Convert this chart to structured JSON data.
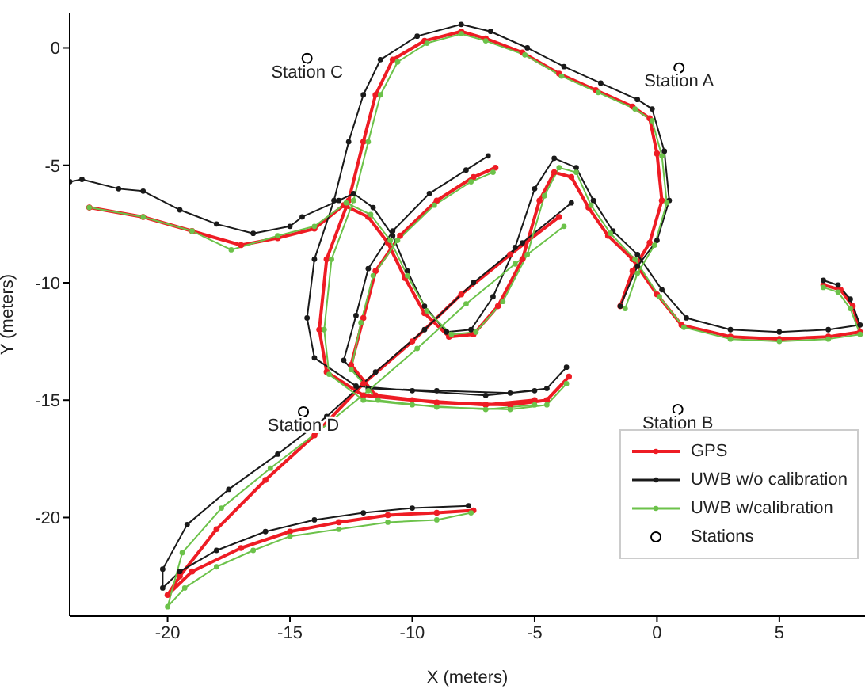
{
  "chart_data": {
    "type": "line",
    "xlabel": "X (meters)",
    "ylabel": "Y (meters)",
    "xlim": [
      -24,
      8.5
    ],
    "ylim": [
      -24.2,
      1.5
    ],
    "xticks": [
      -20,
      -15,
      -10,
      -5,
      0,
      5
    ],
    "yticks": [
      0,
      -5,
      -10,
      -15,
      -20
    ],
    "grid": false,
    "legend": "bottom right",
    "marker": "circle",
    "line_style": "solid",
    "series": [
      {
        "name": "GPS",
        "color": "#ee1c24",
        "x": [
          -23.2,
          -21,
          -19,
          -17,
          -15.5,
          -14,
          -12.8,
          -11.8,
          -11,
          -10.3,
          -9.5,
          -8.5,
          -7.5,
          -6.5,
          -5.5,
          -4.8,
          -4.2,
          -3.5,
          -2.8,
          -2,
          -1,
          0,
          1,
          3,
          5,
          7,
          8.3,
          8,
          7.5,
          6.8,
          null,
          -6.6,
          -7.5,
          -9,
          -10.5,
          -11.5,
          -12,
          -12.5,
          -11.5,
          -9,
          -6,
          -4.5,
          -3.6,
          null,
          -5,
          -7,
          -10,
          -12,
          -13.5,
          -13.8,
          -13.5,
          -12.6,
          -12,
          -11.5,
          -10.8,
          -9.5,
          -8,
          -7,
          -5.5,
          -4,
          -2.5,
          -1,
          -0.3,
          0,
          0.2,
          -0.3,
          -1,
          -1.5,
          null,
          -4,
          -6,
          -8,
          -10,
          -12,
          -14,
          -16,
          -18,
          -19.5,
          -20,
          -19,
          -17,
          -15,
          -13,
          -11,
          -9,
          -7.5
        ],
        "values": [
          -6.8,
          -7.2,
          -7.8,
          -8.4,
          -8.1,
          -7.7,
          -6.7,
          -7.2,
          -8.3,
          -9.8,
          -11.3,
          -12.3,
          -12.2,
          -11,
          -9,
          -6.5,
          -5.3,
          -5.5,
          -6.8,
          -8,
          -9,
          -10.5,
          -11.8,
          -12.3,
          -12.4,
          -12.3,
          -12.1,
          -11,
          -10.3,
          -10.1,
          null,
          -5.1,
          -5.5,
          -6.5,
          -8,
          -9.5,
          -11.5,
          -13.5,
          -14.8,
          -15.1,
          -15.2,
          -15,
          -14,
          null,
          -15,
          -15.2,
          -15,
          -14.8,
          -13.8,
          -12,
          -9,
          -6.5,
          -4,
          -2,
          -0.5,
          0.3,
          0.7,
          0.4,
          -0.2,
          -1.1,
          -1.8,
          -2.5,
          -3,
          -4.5,
          -6.5,
          -8.3,
          -9.5,
          -11,
          null,
          -7.2,
          -8.8,
          -10.5,
          -12.5,
          -14.3,
          -16.5,
          -18.4,
          -20.5,
          -22.5,
          -23.3,
          -22.3,
          -21.3,
          -20.6,
          -20.2,
          -19.9,
          -19.8,
          -19.7
        ]
      },
      {
        "name": "UWB w/o calibration",
        "color": "#1a1a1a",
        "x": [
          -24,
          -23.5,
          -22,
          -21,
          -19.5,
          -18,
          -16.5,
          -15,
          -14.5,
          -13,
          -12.4,
          -11.6,
          -10.8,
          -10.2,
          -9.5,
          -8.6,
          -7.6,
          -6.7,
          -5.8,
          -5,
          -4.2,
          -3.3,
          -2.6,
          -1.8,
          -0.8,
          0.2,
          1.2,
          3,
          5,
          7,
          8.3,
          7.9,
          7.4,
          6.8,
          null,
          -6.9,
          -7.8,
          -9.3,
          -10.8,
          -11.8,
          -12.3,
          -12.8,
          -11.8,
          -9,
          -6,
          -4.5,
          -3.7,
          null,
          -5,
          -7,
          -10,
          -12.3,
          -14,
          -14.3,
          -14,
          -13.2,
          -12.6,
          -12,
          -11.3,
          -9.8,
          -8,
          -6.8,
          -5.3,
          -3.8,
          -2.3,
          -0.8,
          -0.2,
          0.3,
          0.5,
          0,
          -0.8,
          -1.5,
          null,
          -3.5,
          -5.5,
          -7.5,
          -9.5,
          -11.5,
          -13.5,
          -15.5,
          -17.5,
          -19.2,
          -20.2,
          -20.2,
          -19.5,
          -18,
          -16,
          -14,
          -12,
          -10,
          -7.7
        ],
        "values": [
          -5.7,
          -5.6,
          -6,
          -6.1,
          -6.9,
          -7.5,
          -7.9,
          -7.6,
          -7.2,
          -6.5,
          -6.2,
          -6.8,
          -8,
          -9.5,
          -11,
          -12.1,
          -12,
          -10.6,
          -8.5,
          -6,
          -4.7,
          -5.1,
          -6.5,
          -7.8,
          -8.8,
          -10.3,
          -11.5,
          -12,
          -12.1,
          -12,
          -11.8,
          -10.7,
          -10.1,
          -9.9,
          null,
          -4.6,
          -5.2,
          -6.2,
          -7.8,
          -9.4,
          -11.4,
          -13.3,
          -14.5,
          -14.6,
          -14.7,
          -14.5,
          -13.6,
          null,
          -14.6,
          -14.8,
          -14.6,
          -14.4,
          -13.2,
          -11.5,
          -9,
          -6.5,
          -4,
          -2,
          -0.5,
          0.5,
          1,
          0.7,
          0,
          -0.8,
          -1.5,
          -2.2,
          -2.6,
          -4.4,
          -6.5,
          -8.2,
          -9.3,
          -11,
          null,
          -6.6,
          -8.3,
          -10,
          -12,
          -13.8,
          -15.7,
          -17.3,
          -18.8,
          -20.3,
          -22.2,
          -23,
          -22.3,
          -21.4,
          -20.6,
          -20.1,
          -19.8,
          -19.6,
          -19.5
        ]
      },
      {
        "name": "UWB w/calibration",
        "color": "#6cc24a",
        "x": [
          -23.2,
          -21,
          -19,
          -17.4,
          -15.5,
          -14,
          -12.7,
          -11.7,
          -10.9,
          -10.2,
          -9.4,
          -8.4,
          -7.4,
          -6.3,
          -5.3,
          -4.6,
          -4,
          -3.3,
          -2.7,
          -1.9,
          -0.9,
          0.1,
          1.1,
          3,
          5,
          7,
          8.3,
          7.9,
          7.4,
          6.8,
          null,
          -6.7,
          -7.6,
          -9.1,
          -10.6,
          -11.6,
          -12.1,
          -12.5,
          -11.4,
          -9,
          -6,
          -4.5,
          -3.7,
          null,
          -5,
          -7,
          -10,
          -12,
          -13.4,
          -13.6,
          -13.3,
          -12.4,
          -11.8,
          -11.3,
          -10.6,
          -9.4,
          -8,
          -7,
          -5.4,
          -3.9,
          -2.4,
          -0.9,
          -0.2,
          0.2,
          0.4,
          -0.1,
          -0.8,
          -1.3,
          null,
          -3.8,
          -5.8,
          -7.8,
          -9.8,
          -11.8,
          -13.8,
          -15.8,
          -17.8,
          -19.4,
          -20,
          -19.3,
          -18,
          -16.5,
          -15,
          -13,
          -11,
          -9,
          -7.6
        ],
        "values": [
          -6.8,
          -7.2,
          -7.8,
          -8.6,
          -8,
          -7.6,
          -6.6,
          -7.1,
          -8.2,
          -9.7,
          -11.2,
          -12.2,
          -12.1,
          -10.8,
          -8.8,
          -6.3,
          -5.1,
          -5.3,
          -6.7,
          -7.9,
          -9,
          -10.6,
          -11.9,
          -12.4,
          -12.5,
          -12.4,
          -12.2,
          -11.1,
          -10.4,
          -10.2,
          null,
          -5.3,
          -5.7,
          -6.7,
          -8.2,
          -9.7,
          -11.7,
          -13.7,
          -15,
          -15.3,
          -15.4,
          -15.2,
          -14.3,
          null,
          -15.2,
          -15.4,
          -15.2,
          -15,
          -13.9,
          -12,
          -9,
          -6.5,
          -4,
          -2,
          -0.6,
          0.2,
          0.6,
          0.3,
          -0.3,
          -1.2,
          -1.9,
          -2.6,
          -3.1,
          -4.6,
          -6.6,
          -8.4,
          -9.6,
          -11.1,
          null,
          -7.6,
          -9.2,
          -10.9,
          -12.8,
          -14.6,
          -16.3,
          -17.9,
          -19.6,
          -21.5,
          -23.8,
          -23,
          -22.1,
          -21.4,
          -20.8,
          -20.5,
          -20.2,
          -20.1,
          -19.8
        ]
      },
      {
        "name": "Stations",
        "type": "scatter",
        "color": "#000000",
        "x": [
          0.9,
          0.85,
          -14.3,
          -14.45
        ],
        "values": [
          -0.85,
          -15.4,
          -0.45,
          -15.5
        ]
      }
    ],
    "annotations": [
      {
        "text": "Station A",
        "x": 0.9,
        "y": -0.85
      },
      {
        "text": "Station B",
        "x": 0.85,
        "y": -15.4
      },
      {
        "text": "Station C",
        "x": -14.3,
        "y": -0.45
      },
      {
        "text": "Station D",
        "x": -14.45,
        "y": -15.5
      }
    ]
  }
}
